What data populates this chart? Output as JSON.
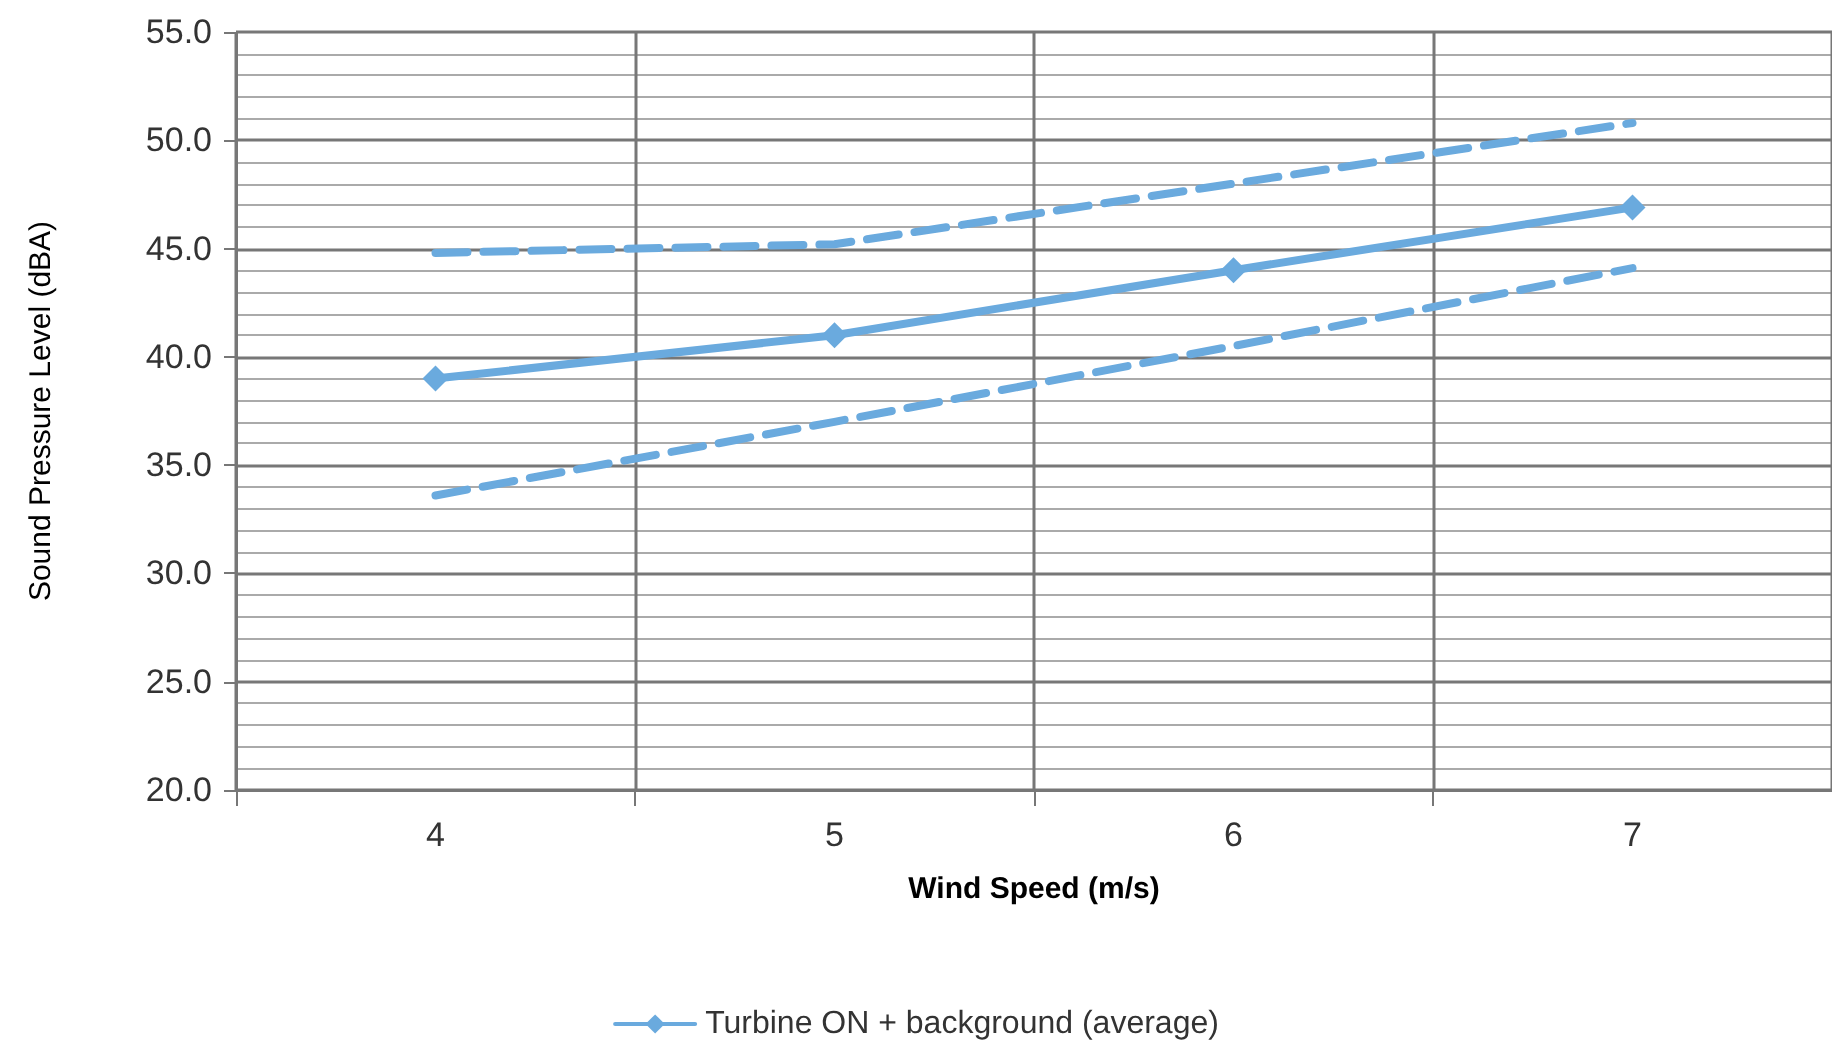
{
  "chart_data": {
    "type": "line",
    "xlabel": "Wind Speed (m/s)",
    "ylabel": "Sound Pressure Level (dBA)",
    "categories": [
      "4",
      "5",
      "6",
      "7"
    ],
    "series": [
      {
        "name": "Turbine ON + background (average)",
        "color": "#6aaade",
        "values": [
          39.0,
          41.0,
          44.0,
          46.9
        ],
        "marker": "diamond",
        "line_style": "solid"
      },
      {
        "color": "#6aaade",
        "values": [
          44.8,
          45.2,
          48.0,
          50.8
        ],
        "marker": "none",
        "line_style": "dashed"
      },
      {
        "color": "#6aaade",
        "values": [
          33.6,
          37.0,
          40.5,
          44.1
        ],
        "marker": "none",
        "line_style": "dashed"
      }
    ],
    "ylim": [
      20,
      55
    ],
    "yticks": [
      {
        "value": 20,
        "label": "20.0"
      },
      {
        "value": 25,
        "label": "25.0"
      },
      {
        "value": 30,
        "label": "30.0"
      },
      {
        "value": 35,
        "label": "35.0"
      },
      {
        "value": 40,
        "label": "40.0"
      },
      {
        "value": 45,
        "label": "45.0"
      },
      {
        "value": 50,
        "label": "50.0"
      },
      {
        "value": 55,
        "label": "55.0"
      }
    ],
    "grid": true,
    "legend": "bottom"
  }
}
